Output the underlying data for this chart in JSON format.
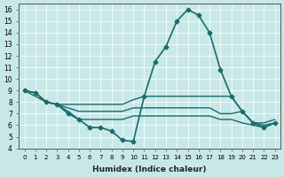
{
  "xlabel": "Humidex (Indice chaleur)",
  "ylabel": "",
  "bg_color": "#c8e8e8",
  "line_color": "#1a6b6b",
  "xlim": [
    -0.5,
    23.5
  ],
  "ylim": [
    4,
    16.5
  ],
  "xticks": [
    0,
    1,
    2,
    3,
    4,
    5,
    6,
    7,
    8,
    9,
    10,
    11,
    12,
    13,
    14,
    15,
    16,
    17,
    18,
    19,
    20,
    21,
    22,
    23
  ],
  "yticks": [
    4,
    5,
    6,
    7,
    8,
    9,
    10,
    11,
    12,
    13,
    14,
    15,
    16
  ],
  "series": [
    {
      "x": [
        0,
        1,
        2,
        3,
        4,
        5,
        6,
        7,
        8,
        9,
        10,
        11,
        12,
        13,
        14,
        15,
        16,
        17,
        18,
        19,
        20,
        21,
        22,
        23
      ],
      "y": [
        9,
        8.8,
        8,
        7.8,
        7,
        6.5,
        5.8,
        5.8,
        5.5,
        4.7,
        4.6,
        8.5,
        11.5,
        12.8,
        15,
        16,
        15.5,
        14,
        10.8,
        8.5,
        7.2,
        6.2,
        5.8,
        6.2
      ],
      "marker": "D",
      "markersize": 2.5,
      "linewidth": 1.2
    },
    {
      "x": [
        0,
        1,
        2,
        3,
        4,
        5,
        6,
        7,
        8,
        9,
        10,
        11,
        12,
        13,
        14,
        15,
        16,
        17,
        18,
        19,
        20,
        21,
        22,
        23
      ],
      "y": [
        9,
        8.8,
        8,
        7.8,
        7.8,
        7.8,
        7.8,
        7.8,
        7.8,
        7.8,
        8.2,
        8.5,
        8.5,
        8.5,
        8.5,
        8.5,
        8.5,
        8.5,
        8.5,
        8.5,
        7.2,
        6.2,
        6.2,
        6.5
      ],
      "marker": null,
      "markersize": 0,
      "linewidth": 1.0
    },
    {
      "x": [
        0,
        1,
        2,
        3,
        4,
        5,
        6,
        7,
        8,
        9,
        10,
        11,
        12,
        13,
        14,
        15,
        16,
        17,
        18,
        19,
        20,
        21,
        22,
        23
      ],
      "y": [
        9,
        8.8,
        8,
        7.8,
        7.5,
        7.2,
        7.2,
        7.2,
        7.2,
        7.2,
        7.5,
        7.5,
        7.5,
        7.5,
        7.5,
        7.5,
        7.5,
        7.5,
        7.0,
        7.0,
        7.2,
        6.2,
        6.0,
        6.2
      ],
      "marker": null,
      "markersize": 0,
      "linewidth": 1.0
    },
    {
      "x": [
        0,
        1,
        2,
        3,
        4,
        5,
        6,
        7,
        8,
        9,
        10,
        11,
        12,
        13,
        14,
        15,
        16,
        17,
        18,
        19,
        20,
        21,
        22,
        23
      ],
      "y": [
        9,
        8.5,
        8,
        7.8,
        7.2,
        6.5,
        6.5,
        6.5,
        6.5,
        6.5,
        6.8,
        6.8,
        6.8,
        6.8,
        6.8,
        6.8,
        6.8,
        6.8,
        6.5,
        6.5,
        6.2,
        6.0,
        5.8,
        6.2
      ],
      "marker": null,
      "markersize": 0,
      "linewidth": 1.0
    }
  ]
}
